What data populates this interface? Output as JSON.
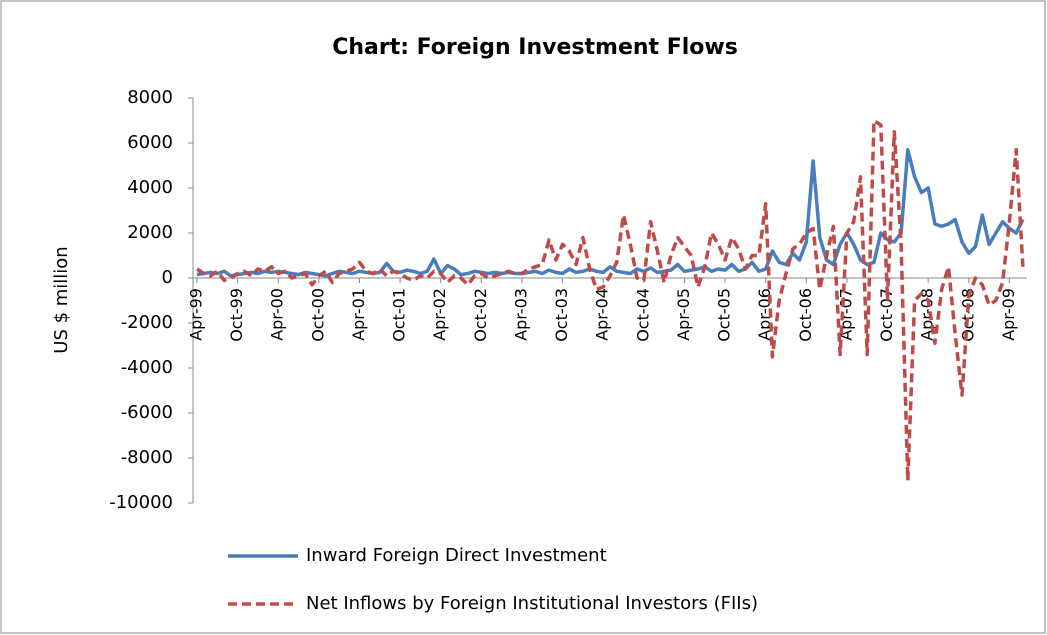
{
  "chart_data": {
    "type": "line",
    "title": "Chart: Foreign Investment Flows",
    "y_label": "US $ million",
    "categories": [
      "Apr-99",
      null,
      null,
      null,
      null,
      null,
      "Oct-99",
      null,
      null,
      null,
      null,
      null,
      "Apr-00",
      null,
      null,
      null,
      null,
      null,
      "Oct-00",
      null,
      null,
      null,
      null,
      null,
      "Apr-01",
      null,
      null,
      null,
      null,
      null,
      "Oct-01",
      null,
      null,
      null,
      null,
      null,
      "Apr-02",
      null,
      null,
      null,
      null,
      null,
      "Oct-02",
      null,
      null,
      null,
      null,
      null,
      "Apr-03",
      null,
      null,
      null,
      null,
      null,
      "Oct-03",
      null,
      null,
      null,
      null,
      null,
      "Apr-04",
      null,
      null,
      null,
      null,
      null,
      "Oct-04",
      null,
      null,
      null,
      null,
      null,
      "Apr-05",
      null,
      null,
      null,
      null,
      null,
      "Oct-05",
      null,
      null,
      null,
      null,
      null,
      "Apr-06",
      null,
      null,
      null,
      null,
      null,
      "Oct-06",
      null,
      null,
      null,
      null,
      null,
      "Apr-07",
      null,
      null,
      null,
      null,
      null,
      "Oct-07",
      null,
      null,
      null,
      null,
      null,
      "Apr-08",
      null,
      null,
      null,
      null,
      null,
      "Oct-08",
      null,
      null,
      null,
      null,
      null,
      "Apr-09",
      null,
      null
    ],
    "series": [
      {
        "name": "Inward Foreign Direct Investment",
        "color": "#4a7ebb",
        "dash": false,
        "values": [
          150,
          200,
          250,
          200,
          300,
          100,
          150,
          200,
          250,
          200,
          300,
          250,
          300,
          250,
          200,
          150,
          250,
          200,
          150,
          100,
          200,
          300,
          250,
          200,
          300,
          250,
          200,
          250,
          650,
          300,
          250,
          350,
          300,
          200,
          300,
          850,
          200,
          550,
          400,
          150,
          200,
          300,
          250,
          200,
          250,
          200,
          250,
          200,
          200,
          250,
          300,
          200,
          350,
          250,
          200,
          400,
          250,
          300,
          400,
          300,
          250,
          500,
          300,
          250,
          200,
          400,
          300,
          450,
          250,
          300,
          350,
          600,
          300,
          350,
          400,
          500,
          300,
          400,
          350,
          600,
          300,
          400,
          700,
          300,
          400,
          1200,
          700,
          600,
          1100,
          800,
          1600,
          5200,
          1800,
          800,
          600,
          1500,
          2000,
          1500,
          800,
          600,
          700,
          2000,
          1700,
          1600,
          2000,
          5700,
          4500,
          3800,
          4000,
          2400,
          2300,
          2400,
          2600,
          1600,
          1100,
          1400,
          2800,
          1500,
          2000,
          2500,
          2200,
          2000,
          2600
        ]
      },
      {
        "name": "Net Inflows by Foreign Institutional Investors (FIIs)",
        "color": "#be4b48",
        "dash": true,
        "values": [
          400,
          200,
          100,
          300,
          -100,
          0,
          200,
          300,
          100,
          400,
          300,
          500,
          200,
          300,
          0,
          100,
          200,
          -300,
          100,
          300,
          -200,
          200,
          300,
          400,
          700,
          300,
          200,
          400,
          100,
          300,
          200,
          0,
          -100,
          100,
          0,
          300,
          200,
          -200,
          100,
          0,
          -300,
          100,
          200,
          0,
          100,
          200,
          300,
          200,
          200,
          400,
          500,
          600,
          1700,
          800,
          1500,
          1200,
          600,
          1800,
          400,
          -500,
          -400,
          100,
          700,
          2800,
          1500,
          0,
          -100,
          2500,
          1200,
          -200,
          1000,
          1800,
          1400,
          1000,
          -400,
          500,
          2000,
          1500,
          800,
          1800,
          1300,
          400,
          1000,
          1000,
          3300,
          -3500,
          -1000,
          200,
          1300,
          1500,
          2000,
          2200,
          -500,
          1000,
          2300,
          -3400,
          2000,
          2500,
          4500,
          -3400,
          7000,
          6800,
          -1000,
          6500,
          1500,
          -9000,
          -1000,
          -700,
          -1000,
          -2900,
          -500,
          500,
          -2500,
          -5200,
          -800,
          0,
          -300,
          -1200,
          -1000,
          -200,
          2500,
          5700,
          500
        ]
      }
    ],
    "ylim": [
      -10000,
      8000
    ],
    "yticks": [
      -10000,
      -8000,
      -6000,
      -4000,
      -2000,
      0,
      2000,
      4000,
      6000,
      8000
    ]
  }
}
